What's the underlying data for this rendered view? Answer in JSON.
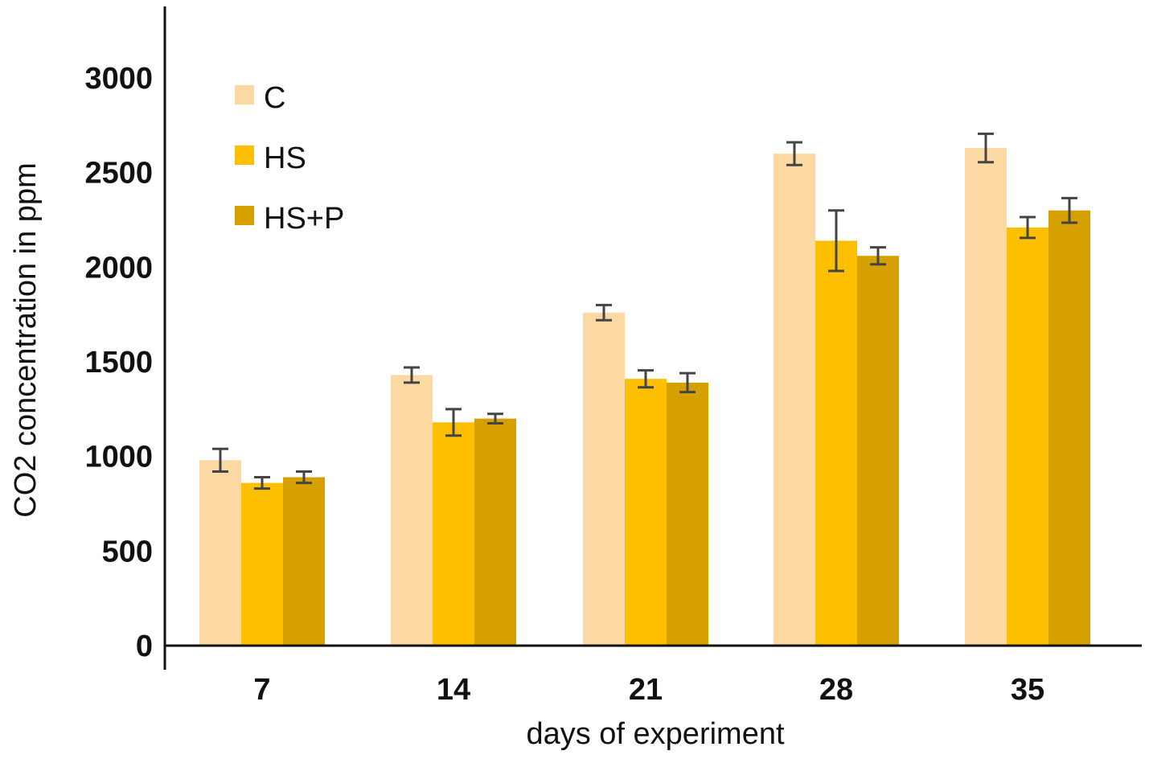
{
  "chart_data": {
    "type": "bar",
    "title": "",
    "xlabel": "days of experiment",
    "ylabel": "CO2 concentration in ppm",
    "categories": [
      "7",
      "14",
      "21",
      "28",
      "35"
    ],
    "ylim": [
      0,
      3000
    ],
    "yticks": [
      "0",
      "500",
      "1000",
      "1500",
      "2000",
      "2500",
      "3000"
    ],
    "legend_position": "top-left",
    "grid": false,
    "series": [
      {
        "name": "C",
        "color": "#FCD9A3",
        "values": [
          980,
          1430,
          1760,
          2600,
          2630
        ],
        "errors": [
          60,
          40,
          40,
          60,
          75
        ]
      },
      {
        "name": "HS",
        "color": "#FDBF00",
        "values": [
          860,
          1180,
          1410,
          2140,
          2210
        ],
        "errors": [
          30,
          70,
          45,
          160,
          55
        ]
      },
      {
        "name": "HS+P",
        "color": "#D6A100",
        "values": [
          890,
          1200,
          1390,
          2060,
          2300
        ],
        "errors": [
          30,
          25,
          50,
          45,
          65
        ]
      }
    ]
  }
}
